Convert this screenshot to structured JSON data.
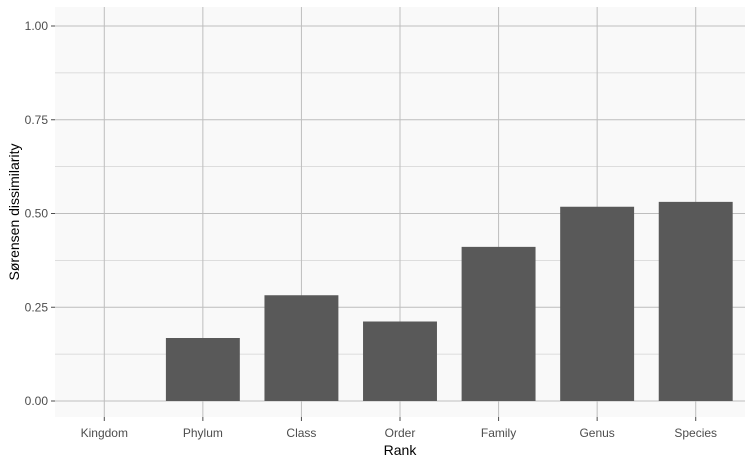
{
  "chart_data": {
    "type": "bar",
    "title": "",
    "xlabel": "Rank",
    "ylabel": "Sørensen dissimilarity",
    "categories": [
      "Kingdom",
      "Phylum",
      "Class",
      "Order",
      "Family",
      "Genus",
      "Species"
    ],
    "values": [
      0.0,
      0.168,
      0.282,
      0.212,
      0.411,
      0.518,
      0.531
    ],
    "ylim": [
      0,
      1.0
    ],
    "yticks": [
      0.0,
      0.25,
      0.5,
      0.75,
      1.0
    ],
    "ytick_labels": [
      "0.00",
      "0.25",
      "0.50",
      "0.75",
      "1.00"
    ],
    "grid": true,
    "legend": "none",
    "colors": {
      "bar": "#595959",
      "panel_background": "#f9f9f9",
      "grid_major": "#bebebe",
      "grid_minor": "#d4d4d4"
    }
  }
}
